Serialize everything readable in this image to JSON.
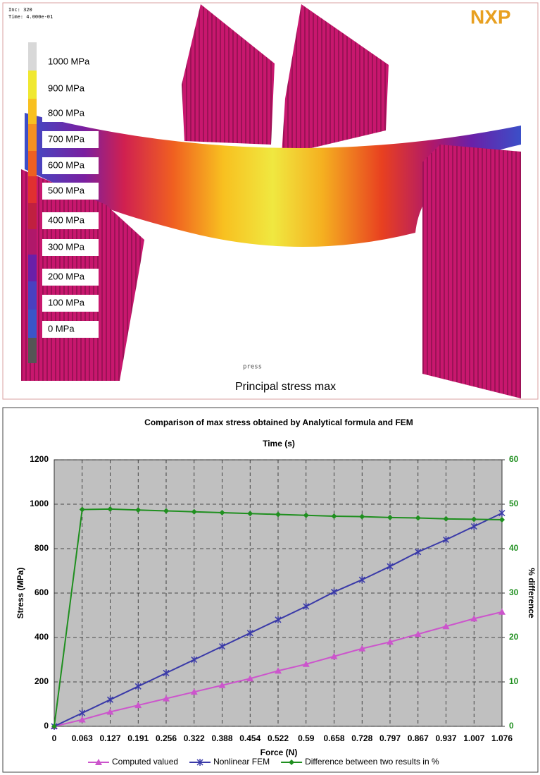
{
  "fem_panel": {
    "inc": "Inc:  320",
    "time": "Time:  4.000e-01",
    "logo": "NXP",
    "scale_labels": [
      "1000 MPa",
      "900 MPa",
      "800 MPa",
      "700 MPa",
      "600 MPa",
      "500 MPa",
      "400 MPa",
      "300 MPa",
      "200 MPa",
      "100 MPa",
      "0 MPa"
    ],
    "caption_small": "press",
    "caption": "Principal stress max"
  },
  "chart_data": {
    "type": "line",
    "title": "Comparison of max stress obtained by Analytical formula and FEM",
    "subtitle": "Time (s)",
    "x_label": "Force (N)",
    "y_label": "Stress (MPa)",
    "y2_label": "% difference",
    "categories": [
      "0",
      "0.063",
      "0.127",
      "0.191",
      "0.256",
      "0.322",
      "0.388",
      "0.454",
      "0.522",
      "0.59",
      "0.658",
      "0.728",
      "0.797",
      "0.867",
      "0.937",
      "1.007",
      "1.076"
    ],
    "series": [
      {
        "name": "Computed valued",
        "color": "#cc55cc",
        "marker": "triangle",
        "values": [
          0,
          30,
          65,
          95,
          125,
          155,
          185,
          215,
          250,
          280,
          315,
          350,
          380,
          415,
          450,
          485,
          515
        ]
      },
      {
        "name": "Nonlinear FEM",
        "color": "#3a3aa8",
        "marker": "star",
        "values": [
          0,
          60,
          120,
          180,
          240,
          300,
          360,
          420,
          480,
          540,
          605,
          660,
          720,
          785,
          840,
          900,
          960
        ]
      },
      {
        "name": "Difference between two results in %",
        "color": "#1f8f1f",
        "marker": "diamond",
        "axis": "y2",
        "values": [
          0,
          48.8,
          48.9,
          48.7,
          48.5,
          48.3,
          48.1,
          47.9,
          47.7,
          47.5,
          47.3,
          47.2,
          47.0,
          46.9,
          46.7,
          46.6,
          46.5
        ]
      }
    ],
    "ylim": [
      0,
      1200
    ],
    "yticks": [
      0,
      200,
      400,
      600,
      800,
      1000,
      1200
    ],
    "y2lim": [
      0,
      60
    ],
    "y2ticks": [
      0,
      10,
      20,
      30,
      40,
      50,
      60
    ],
    "grid": true,
    "legend": "bottom"
  }
}
